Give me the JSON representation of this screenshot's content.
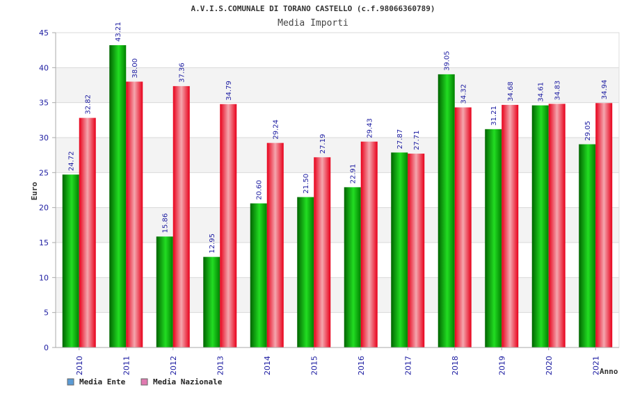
{
  "chart_data": {
    "type": "bar",
    "title": "A.V.I.S.COMUNALE DI TORANO CASTELLO (c.f.98066360789)",
    "subtitle": "Media Importi",
    "ylabel": "Euro",
    "xlabel": "Anno",
    "ylim": [
      0,
      45
    ],
    "yticks": [
      0,
      5,
      10,
      15,
      20,
      25,
      30,
      35,
      40,
      45
    ],
    "categories": [
      "2010",
      "2011",
      "2012",
      "2013",
      "2014",
      "2015",
      "2016",
      "2017",
      "2018",
      "2019",
      "2020",
      "2021"
    ],
    "series": [
      {
        "name": "Media Ente",
        "values": [
          24.72,
          43.21,
          15.86,
          12.95,
          20.6,
          21.5,
          22.91,
          27.87,
          39.05,
          31.21,
          34.61,
          29.05
        ],
        "labels": [
          "24.72",
          "43.21",
          "15.86",
          "12.95",
          "20.60",
          "21.50",
          "22.91",
          "27.87",
          "39.05",
          "31.21",
          "34.61",
          "29.05"
        ]
      },
      {
        "name": "Media Nazionale",
        "values": [
          32.82,
          38.0,
          37.36,
          34.79,
          29.24,
          27.19,
          29.43,
          27.71,
          34.32,
          34.68,
          34.83,
          34.94
        ],
        "labels": [
          "32.82",
          "38.00",
          "37.36",
          "34.79",
          "29.24",
          "27.19",
          "29.43",
          "27.71",
          "34.32",
          "34.68",
          "34.83",
          "34.94"
        ]
      }
    ],
    "legend": {
      "placement": "bottom-left",
      "items": [
        {
          "label": "Media Ente",
          "swatch_color": "#5b9bd5"
        },
        {
          "label": "Media Nazionale",
          "swatch_color": "#e07ab0"
        }
      ]
    },
    "colors": {
      "ente_dark": "#006400",
      "ente_light": "#22dd22",
      "nazionale_dark": "#e8001a",
      "nazionale_light": "#f4a6ae",
      "band": "#f3f3f3",
      "grid": "#d9d9d9"
    }
  }
}
